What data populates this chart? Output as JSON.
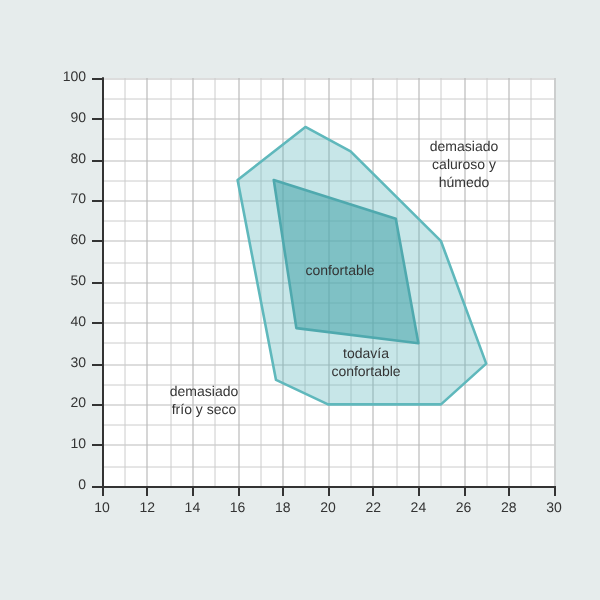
{
  "chart_data": {
    "type": "area",
    "series": [
      {
        "color": "#5fb8bc",
        "x": [
          16,
          19,
          21,
          25,
          27,
          25,
          20,
          17.7,
          16
        ],
        "values": [
          75,
          88,
          82,
          60,
          30,
          20,
          20,
          26,
          75
        ]
      },
      {
        "color": "#4fa9ae",
        "x": [
          17.6,
          23,
          24,
          18.6,
          17.6
        ],
        "values": [
          75,
          65.5,
          35,
          38.7,
          75
        ]
      }
    ],
    "xlim": [
      10,
      30
    ],
    "xticks": [
      10,
      12,
      14,
      16,
      18,
      20,
      22,
      24,
      26,
      28,
      30
    ],
    "ylim": [
      0,
      100
    ],
    "yticks": [
      0,
      10,
      20,
      30,
      40,
      50,
      60,
      70,
      80,
      90,
      100
    ],
    "grid": true,
    "marker": "none",
    "annotations": [
      "demasiado\ncaluroso y\nhúmedo",
      "confortable",
      "todavía\nconfortable",
      "demasiado\nfrío y seco"
    ]
  }
}
